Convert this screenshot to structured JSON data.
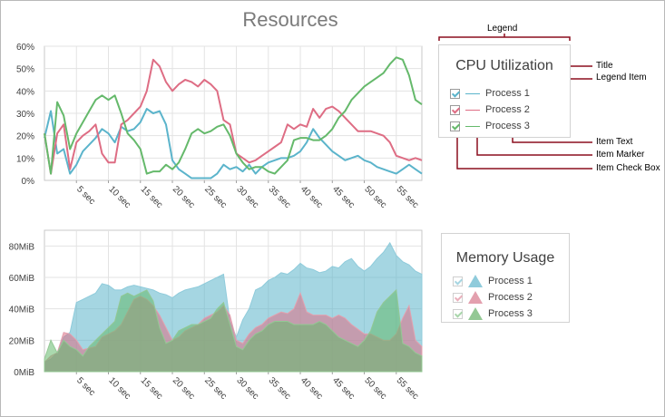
{
  "title": "Resources",
  "colors": {
    "p1": "#5bb4cb",
    "p2": "#de6d84",
    "p3": "#65b96b"
  },
  "cpu_legend": {
    "title": "CPU Utilization",
    "items": [
      {
        "label": "Process 1",
        "color": "#5bb4cb"
      },
      {
        "label": "Process 2",
        "color": "#de6d84"
      },
      {
        "label": "Process 3",
        "color": "#65b96b"
      }
    ]
  },
  "memory_legend": {
    "title": "Memory Usage",
    "items": [
      {
        "label": "Process 1",
        "color": "#5bb4cb"
      },
      {
        "label": "Process 2",
        "color": "#de6d84"
      },
      {
        "label": "Process 3",
        "color": "#65b96b"
      }
    ]
  },
  "annotations": {
    "legend": "Legend",
    "title": "Title",
    "legend_item": "Legend Item",
    "item_text": "Item Text",
    "item_marker": "Item Marker",
    "item_check_box": "Item Check Box"
  },
  "chart_data": [
    {
      "type": "line",
      "title": "CPU Utilization",
      "xlim": [
        0,
        59
      ],
      "ylim": [
        0,
        60
      ],
      "x_ticks": [
        "5 sec",
        "10 sec",
        "15 sec",
        "20 sec",
        "25 sec",
        "30 sec",
        "35 sec",
        "40 sec",
        "45 sec",
        "50 sec",
        "55 sec"
      ],
      "y_ticks": [
        "0%",
        "10%",
        "20%",
        "30%",
        "40%",
        "50%",
        "60%"
      ],
      "grid": true,
      "series": [
        {
          "name": "Process 1",
          "values": [
            19,
            31,
            12,
            14,
            3,
            7,
            13,
            16,
            19,
            23,
            21,
            17,
            24,
            22,
            23,
            26,
            32,
            30,
            31,
            25,
            9,
            5,
            3,
            1,
            1,
            1,
            1,
            3,
            7,
            5,
            6,
            4,
            7,
            3,
            6,
            8,
            9,
            10,
            10,
            11,
            13,
            17,
            23,
            19,
            16,
            13,
            11,
            9,
            10,
            11,
            9,
            8,
            6,
            5,
            4,
            3,
            5,
            7,
            5,
            3
          ]
        },
        {
          "name": "Process 2",
          "values": [
            21,
            3,
            21,
            25,
            5,
            17,
            20,
            22,
            25,
            12,
            8,
            8,
            25,
            27,
            30,
            33,
            40,
            54,
            51,
            44,
            40,
            43,
            45,
            44,
            42,
            45,
            43,
            40,
            27,
            25,
            12,
            10,
            8,
            9,
            11,
            13,
            15,
            17,
            25,
            23,
            25,
            24,
            32,
            28,
            32,
            33,
            31,
            28,
            25,
            22,
            22,
            22,
            21,
            20,
            17,
            11,
            10,
            9,
            10,
            9
          ]
        },
        {
          "name": "Process 3",
          "values": [
            21,
            3,
            35,
            29,
            14,
            21,
            26,
            31,
            36,
            38,
            36,
            38,
            30,
            21,
            18,
            14,
            3,
            4,
            4,
            7,
            5,
            8,
            14,
            21,
            23,
            21,
            22,
            24,
            25,
            20,
            12,
            8,
            5,
            6,
            6,
            4,
            3,
            6,
            9,
            18,
            19,
            19,
            18,
            18,
            20,
            23,
            28,
            31,
            36,
            39,
            42,
            44,
            46,
            48,
            52,
            55,
            54,
            47,
            36,
            34
          ]
        }
      ]
    },
    {
      "type": "area",
      "title": "Memory Usage",
      "xlim": [
        0,
        59
      ],
      "ylim": [
        0,
        90
      ],
      "x_ticks": [
        "5 sec",
        "10 sec",
        "15 sec",
        "20 sec",
        "25 sec",
        "30 sec",
        "35 sec",
        "40 sec",
        "45 sec",
        "50 sec",
        "55 sec"
      ],
      "y_ticks": [
        "0MiB",
        "20MiB",
        "40MiB",
        "60MiB",
        "80MiB"
      ],
      "grid": true,
      "series": [
        {
          "name": "Process 1",
          "values": [
            6,
            8,
            12,
            22,
            25,
            44,
            46,
            48,
            50,
            56,
            55,
            52,
            52,
            54,
            55,
            54,
            53,
            52,
            50,
            49,
            47,
            50,
            52,
            53,
            54,
            56,
            58,
            60,
            62,
            32,
            22,
            33,
            40,
            52,
            54,
            58,
            60,
            63,
            62,
            65,
            69,
            66,
            65,
            63,
            64,
            67,
            66,
            70,
            72,
            67,
            64,
            67,
            72,
            76,
            82,
            74,
            70,
            68,
            64,
            62
          ]
        },
        {
          "name": "Process 2",
          "values": [
            6,
            10,
            12,
            25,
            24,
            20,
            14,
            15,
            16,
            22,
            24,
            26,
            30,
            38,
            46,
            48,
            46,
            42,
            36,
            28,
            20,
            22,
            26,
            28,
            30,
            34,
            36,
            38,
            42,
            36,
            20,
            18,
            24,
            28,
            30,
            34,
            36,
            38,
            37,
            40,
            50,
            38,
            36,
            36,
            36,
            34,
            36,
            34,
            30,
            27,
            24,
            24,
            22,
            20,
            20,
            24,
            34,
            42,
            20,
            16
          ]
        },
        {
          "name": "Process 3",
          "values": [
            8,
            20,
            12,
            20,
            16,
            14,
            10,
            16,
            20,
            24,
            28,
            32,
            48,
            50,
            48,
            50,
            52,
            45,
            28,
            18,
            20,
            26,
            28,
            30,
            30,
            32,
            34,
            40,
            44,
            30,
            16,
            14,
            20,
            24,
            26,
            30,
            32,
            32,
            32,
            30,
            30,
            30,
            30,
            32,
            30,
            26,
            22,
            20,
            18,
            16,
            20,
            26,
            38,
            44,
            48,
            52,
            18,
            16,
            12,
            10
          ]
        }
      ]
    }
  ]
}
